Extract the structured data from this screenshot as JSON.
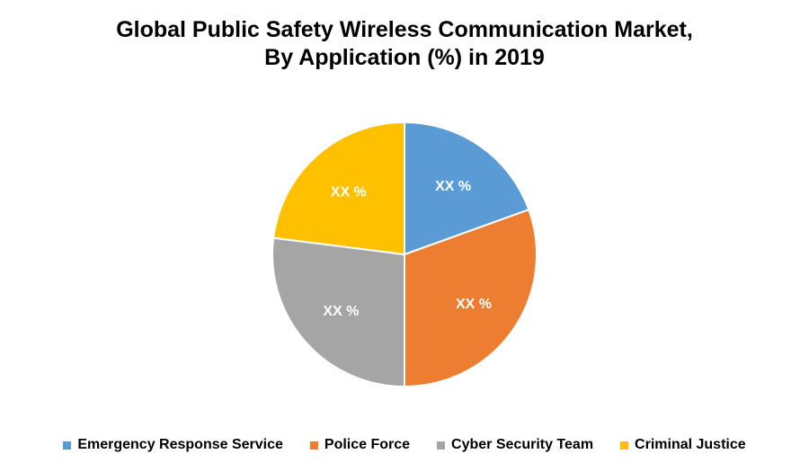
{
  "chart_data": {
    "type": "pie",
    "title_line1": "Global Public Safety Wireless Communication Market,",
    "title_line2": "By Application (%) in 2019",
    "categories": [
      "Emergency Response Service",
      "Police Force",
      "Cyber Security Team",
      "Criminal Justice"
    ],
    "values": [
      19.5,
      30.5,
      27,
      23
    ],
    "data_labels": [
      "XX %",
      "XX %",
      "XX %",
      "XX %"
    ],
    "colors": [
      "#5B9BD5",
      "#ED7D31",
      "#A5A5A5",
      "#FFC000"
    ],
    "legend_position": "bottom"
  }
}
